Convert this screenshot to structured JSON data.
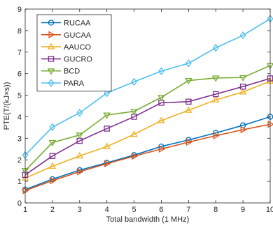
{
  "chart_data": {
    "type": "line",
    "xlabel": "Total bandwidth (1 MHz)",
    "ylabel": "PTE(T/(kJ×s))",
    "xlim": [
      1,
      10
    ],
    "ylim": [
      0,
      9
    ],
    "x_ticks": [
      "1",
      "2",
      "3",
      "4",
      "5",
      "6",
      "7",
      "8",
      "9",
      "10"
    ],
    "y_ticks": [
      "0",
      "1",
      "2",
      "3",
      "4",
      "5",
      "6",
      "7",
      "8",
      "9"
    ],
    "grid": false,
    "legend_position": "top-left",
    "x": [
      1,
      2,
      3,
      4,
      5,
      6,
      7,
      8,
      9,
      10
    ],
    "series": [
      {
        "name": "RUCAA",
        "color": "#0072BD",
        "marker": "circle",
        "values": [
          0.62,
          1.1,
          1.52,
          1.86,
          2.22,
          2.62,
          2.92,
          3.25,
          3.6,
          4.0
        ]
      },
      {
        "name": "GUCAA",
        "color": "#D95319",
        "marker": "triangle-right",
        "values": [
          0.57,
          1.03,
          1.45,
          1.82,
          2.17,
          2.5,
          2.82,
          3.12,
          3.4,
          3.65
        ]
      },
      {
        "name": "AAUCO",
        "color": "#EDB120",
        "marker": "triangle-up",
        "values": [
          1.15,
          1.7,
          2.18,
          2.62,
          3.18,
          3.82,
          4.3,
          4.78,
          5.15,
          5.65
        ]
      },
      {
        "name": "GUCRO",
        "color": "#7E2F8E",
        "marker": "square",
        "values": [
          1.3,
          2.18,
          2.88,
          3.45,
          4.0,
          4.65,
          4.7,
          5.05,
          5.4,
          5.78
        ]
      },
      {
        "name": "BCD",
        "color": "#77AC30",
        "marker": "triangle-down",
        "values": [
          1.5,
          2.8,
          3.15,
          4.08,
          4.25,
          4.9,
          5.68,
          5.8,
          5.82,
          6.38
        ]
      },
      {
        "name": "PARA",
        "color": "#4DBEEE",
        "marker": "diamond",
        "values": [
          2.22,
          3.52,
          4.18,
          5.1,
          5.62,
          6.12,
          6.48,
          7.2,
          7.78,
          8.55
        ]
      }
    ]
  }
}
